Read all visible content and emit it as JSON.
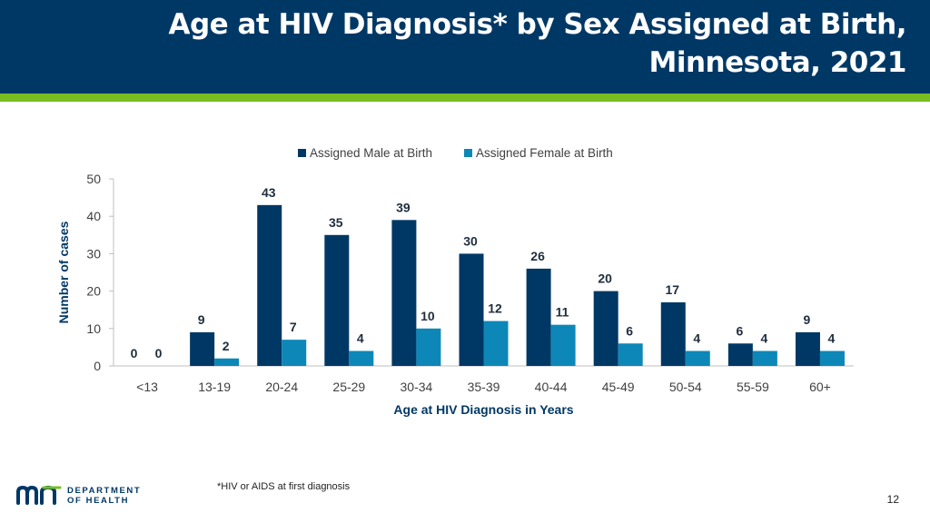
{
  "header": {
    "title": "Age at HIV Diagnosis* by Sex Assigned at Birth, Minnesota, 2021"
  },
  "footer": {
    "footnote": "*HIV or AIDS at first diagnosis",
    "page_number": "12",
    "logo_line1": "DEPARTMENT",
    "logo_line2": "OF HEALTH"
  },
  "colors": {
    "header_bg": "#003865",
    "accent_green": "#78BE21",
    "male": "#003865",
    "female": "#0D87B7"
  },
  "chart_data": {
    "type": "bar",
    "title": "",
    "xlabel": "Age at HIV Diagnosis in Years",
    "ylabel": "Number of cases",
    "ylim": [
      0,
      50
    ],
    "yticks": [
      0,
      10,
      20,
      30,
      40,
      50
    ],
    "grid": false,
    "legend_position": "top",
    "categories": [
      "<13",
      "13-19",
      "20-24",
      "25-29",
      "30-34",
      "35-39",
      "40-44",
      "45-49",
      "50-54",
      "55-59",
      "60+"
    ],
    "series": [
      {
        "name": "Assigned Male at Birth",
        "color": "#003865",
        "values": [
          0,
          9,
          43,
          35,
          39,
          30,
          26,
          20,
          17,
          6,
          9
        ]
      },
      {
        "name": "Assigned Female at Birth",
        "color": "#0D87B7",
        "values": [
          0,
          2,
          7,
          4,
          10,
          12,
          11,
          6,
          4,
          4,
          4
        ]
      }
    ]
  }
}
